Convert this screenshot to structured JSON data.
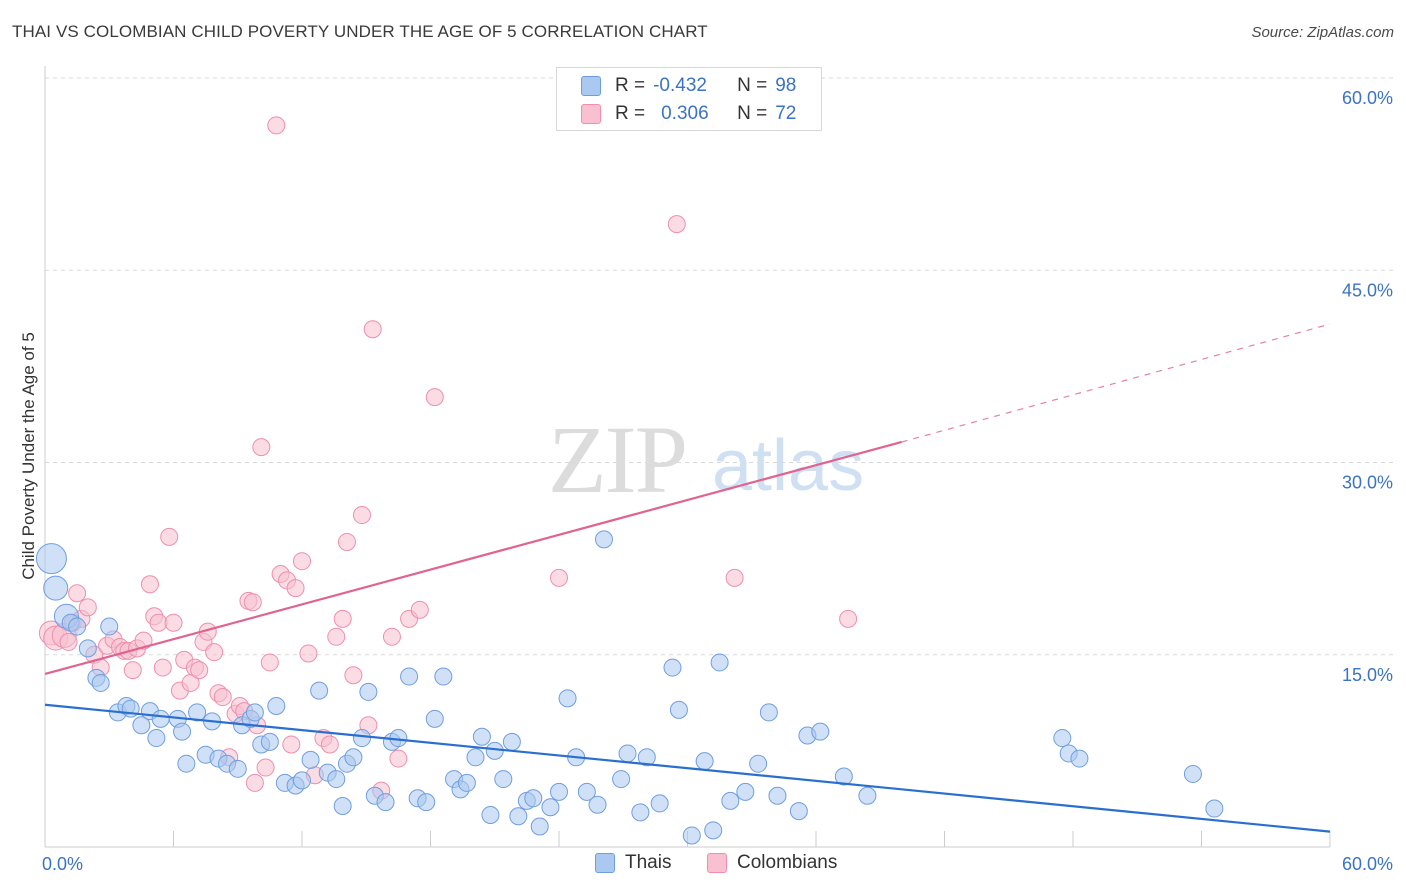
{
  "title": "THAI VS COLOMBIAN CHILD POVERTY UNDER THE AGE OF 5 CORRELATION CHART",
  "source": "Source: ZipAtlas.com",
  "watermark": {
    "zip": "ZIP",
    "atlas": "atlas"
  },
  "legend": {
    "rows": [
      {
        "r_label": "R =",
        "r_value": "-0.432",
        "n_label": "N =",
        "n_value": "98"
      },
      {
        "r_label": "R =",
        "r_value": "0.306",
        "n_label": "N =",
        "n_value": "72"
      }
    ]
  },
  "bottom_legend": {
    "thais": "Thais",
    "colombians": "Colombians"
  },
  "colors": {
    "thai_fill": "#aac8f0",
    "thai_stroke": "#6f9ee0",
    "thai_line": "#2a6fd0",
    "col_fill": "#f8c0d0",
    "col_stroke": "#ef8fab",
    "col_line": "#e0648f",
    "axis_label": "#3b73c4",
    "grid": "#d9d9d9"
  },
  "chart_data": {
    "type": "scatter",
    "title": "THAI VS COLOMBIAN CHILD POVERTY UNDER THE AGE OF 5 CORRELATION CHART",
    "xlabel": "",
    "ylabel": "Child Poverty Under the Age of 5",
    "xlim": [
      0,
      60
    ],
    "ylim": [
      0,
      60
    ],
    "x_tick_labels": [
      "0.0%",
      "60.0%"
    ],
    "y_tick_labels": [
      "15.0%",
      "30.0%",
      "45.0%",
      "60.0%"
    ],
    "y_ticks": [
      15,
      30,
      45,
      60
    ],
    "grid": true,
    "legend_position": "top-center",
    "series": [
      {
        "name": "Thais",
        "r": -0.432,
        "n": 98,
        "trend": {
          "x0": 0,
          "y0": 11.1,
          "x1": 60,
          "y1": 1.2
        },
        "points": [
          [
            0.3,
            22.5
          ],
          [
            0.5,
            20.2
          ],
          [
            1.0,
            18.0
          ],
          [
            1.2,
            17.5
          ],
          [
            1.5,
            17.2
          ],
          [
            2.0,
            15.5
          ],
          [
            2.4,
            13.2
          ],
          [
            2.6,
            12.8
          ],
          [
            3.0,
            17.2
          ],
          [
            3.4,
            10.5
          ],
          [
            3.8,
            11.0
          ],
          [
            4.0,
            10.8
          ],
          [
            4.5,
            9.5
          ],
          [
            4.9,
            10.6
          ],
          [
            5.2,
            8.5
          ],
          [
            5.4,
            10.0
          ],
          [
            6.2,
            10.0
          ],
          [
            6.4,
            9.0
          ],
          [
            6.6,
            6.5
          ],
          [
            7.1,
            10.5
          ],
          [
            7.5,
            7.2
          ],
          [
            7.8,
            9.8
          ],
          [
            8.1,
            6.9
          ],
          [
            8.5,
            6.5
          ],
          [
            9.0,
            6.1
          ],
          [
            9.2,
            9.5
          ],
          [
            9.6,
            10.0
          ],
          [
            9.8,
            10.5
          ],
          [
            10.1,
            8.0
          ],
          [
            10.5,
            8.2
          ],
          [
            10.8,
            11.0
          ],
          [
            11.2,
            5.0
          ],
          [
            11.7,
            4.8
          ],
          [
            12.0,
            5.2
          ],
          [
            12.4,
            6.8
          ],
          [
            12.8,
            12.2
          ],
          [
            13.2,
            5.8
          ],
          [
            13.6,
            5.3
          ],
          [
            13.9,
            3.2
          ],
          [
            14.1,
            6.5
          ],
          [
            14.4,
            7.0
          ],
          [
            14.8,
            8.5
          ],
          [
            15.1,
            12.1
          ],
          [
            15.4,
            4.0
          ],
          [
            15.9,
            3.5
          ],
          [
            16.2,
            8.2
          ],
          [
            16.5,
            8.5
          ],
          [
            17.0,
            13.3
          ],
          [
            17.4,
            3.8
          ],
          [
            17.8,
            3.5
          ],
          [
            18.2,
            10.0
          ],
          [
            18.6,
            13.3
          ],
          [
            19.1,
            5.3
          ],
          [
            19.4,
            4.5
          ],
          [
            19.7,
            5.0
          ],
          [
            20.1,
            7.0
          ],
          [
            20.4,
            8.6
          ],
          [
            20.8,
            2.5
          ],
          [
            21.0,
            7.5
          ],
          [
            21.4,
            5.3
          ],
          [
            21.8,
            8.2
          ],
          [
            22.1,
            2.4
          ],
          [
            22.5,
            3.6
          ],
          [
            22.8,
            3.8
          ],
          [
            23.1,
            1.6
          ],
          [
            23.6,
            3.1
          ],
          [
            24.0,
            4.3
          ],
          [
            24.4,
            11.6
          ],
          [
            24.8,
            7.0
          ],
          [
            25.3,
            4.3
          ],
          [
            25.8,
            3.3
          ],
          [
            26.1,
            24.0
          ],
          [
            26.9,
            5.3
          ],
          [
            27.2,
            7.3
          ],
          [
            27.8,
            2.7
          ],
          [
            28.1,
            7.0
          ],
          [
            28.7,
            3.4
          ],
          [
            29.3,
            14.0
          ],
          [
            29.6,
            10.7
          ],
          [
            30.2,
            0.9
          ],
          [
            30.8,
            6.7
          ],
          [
            31.2,
            1.3
          ],
          [
            31.5,
            14.4
          ],
          [
            32.0,
            3.6
          ],
          [
            32.7,
            4.3
          ],
          [
            33.3,
            6.5
          ],
          [
            33.8,
            10.5
          ],
          [
            34.2,
            4.0
          ],
          [
            35.2,
            2.8
          ],
          [
            35.6,
            8.7
          ],
          [
            36.2,
            9.0
          ],
          [
            37.3,
            5.5
          ],
          [
            38.4,
            4.0
          ],
          [
            47.5,
            8.5
          ],
          [
            47.8,
            7.3
          ],
          [
            48.3,
            6.9
          ],
          [
            53.6,
            5.7
          ],
          [
            54.6,
            3.0
          ]
        ]
      },
      {
        "name": "Colombians",
        "r": 0.306,
        "n": 72,
        "trend": {
          "x0": 0,
          "y0": 13.5,
          "x1": 40,
          "y1": 31.6,
          "dash_to_x": 60,
          "dash_to_y": 40.8
        },
        "points": [
          [
            0.3,
            16.7
          ],
          [
            0.5,
            16.3
          ],
          [
            0.9,
            16.5
          ],
          [
            1.1,
            16.0
          ],
          [
            1.3,
            17.5
          ],
          [
            1.5,
            19.8
          ],
          [
            1.7,
            17.8
          ],
          [
            2.0,
            18.7
          ],
          [
            2.3,
            15.0
          ],
          [
            2.6,
            14.0
          ],
          [
            2.9,
            15.7
          ],
          [
            3.2,
            16.2
          ],
          [
            3.5,
            15.6
          ],
          [
            3.7,
            15.3
          ],
          [
            3.9,
            15.3
          ],
          [
            4.1,
            13.8
          ],
          [
            4.3,
            15.5
          ],
          [
            4.6,
            16.1
          ],
          [
            4.9,
            20.5
          ],
          [
            5.1,
            18.0
          ],
          [
            5.3,
            17.5
          ],
          [
            5.5,
            14.0
          ],
          [
            5.8,
            24.2
          ],
          [
            6.0,
            17.5
          ],
          [
            6.3,
            12.2
          ],
          [
            6.5,
            14.6
          ],
          [
            6.8,
            12.8
          ],
          [
            7.0,
            14.0
          ],
          [
            7.2,
            13.8
          ],
          [
            7.4,
            16.0
          ],
          [
            7.6,
            16.8
          ],
          [
            7.9,
            15.2
          ],
          [
            8.1,
            12.0
          ],
          [
            8.3,
            11.7
          ],
          [
            8.6,
            7.0
          ],
          [
            8.9,
            10.4
          ],
          [
            9.1,
            11.0
          ],
          [
            9.3,
            10.6
          ],
          [
            9.5,
            19.2
          ],
          [
            9.7,
            19.1
          ],
          [
            9.9,
            9.5
          ],
          [
            10.1,
            31.2
          ],
          [
            10.3,
            6.2
          ],
          [
            10.5,
            14.4
          ],
          [
            10.8,
            56.3
          ],
          [
            11.0,
            21.3
          ],
          [
            11.3,
            20.8
          ],
          [
            11.5,
            8.0
          ],
          [
            11.7,
            20.2
          ],
          [
            12.0,
            22.3
          ],
          [
            12.3,
            15.1
          ],
          [
            12.6,
            5.6
          ],
          [
            13.0,
            8.5
          ],
          [
            13.3,
            8.0
          ],
          [
            13.6,
            16.4
          ],
          [
            13.9,
            17.8
          ],
          [
            14.1,
            23.8
          ],
          [
            14.4,
            13.4
          ],
          [
            14.8,
            25.9
          ],
          [
            15.1,
            9.5
          ],
          [
            15.3,
            40.4
          ],
          [
            15.7,
            4.4
          ],
          [
            16.2,
            16.4
          ],
          [
            16.5,
            6.9
          ],
          [
            17.0,
            17.8
          ],
          [
            17.5,
            18.5
          ],
          [
            18.2,
            35.1
          ],
          [
            24.0,
            21.0
          ],
          [
            29.5,
            48.6
          ],
          [
            32.2,
            21.0
          ],
          [
            37.5,
            17.8
          ],
          [
            9.8,
            5.0
          ]
        ]
      }
    ]
  }
}
